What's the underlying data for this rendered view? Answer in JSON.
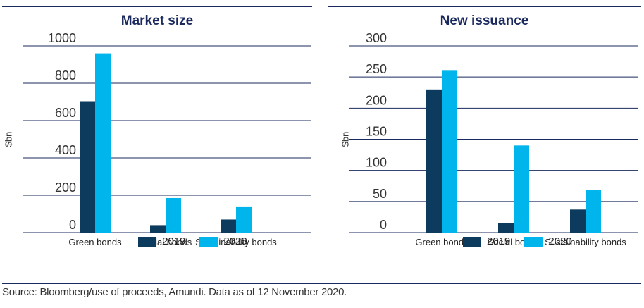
{
  "chart_data": [
    {
      "type": "bar",
      "title": "Market size",
      "ylabel": "$bn",
      "xlabel": "",
      "ylim": [
        0,
        1000
      ],
      "yticks": [
        "0",
        "200",
        "400",
        "600",
        "800",
        "1000"
      ],
      "categories": [
        "Green bonds",
        "Social bonds",
        "Sustainability bonds"
      ],
      "series": [
        {
          "name": "2019",
          "values": [
            700,
            40,
            70
          ],
          "color": "#0d3b5e"
        },
        {
          "name": "2020",
          "values": [
            960,
            185,
            140
          ],
          "color": "#00b4ec"
        }
      ],
      "grid": true,
      "legend": "bottom"
    },
    {
      "type": "bar",
      "title": "New issuance",
      "ylabel": "$bn",
      "xlabel": "",
      "ylim": [
        0,
        300
      ],
      "yticks": [
        "0",
        "50",
        "100",
        "150",
        "200",
        "250",
        "300"
      ],
      "categories": [
        "Green bonds",
        "Social bonds",
        "Sustainability bonds"
      ],
      "series": [
        {
          "name": "2019",
          "values": [
            230,
            15,
            37
          ],
          "color": "#0d3b5e"
        },
        {
          "name": "2020",
          "values": [
            260,
            140,
            68
          ],
          "color": "#00b4ec"
        }
      ],
      "grid": true,
      "legend": "bottom"
    }
  ],
  "footer": {
    "source": "Source: Bloomberg/use of proceeds, Amundi. Data as of 12 November 2020."
  }
}
